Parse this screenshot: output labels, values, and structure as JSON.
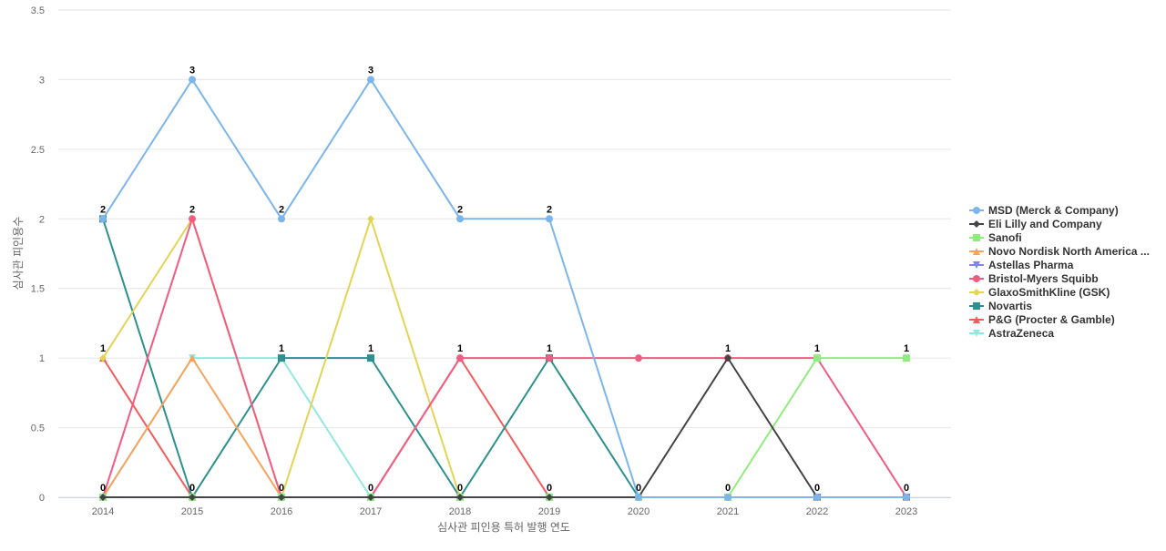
{
  "chart_data": {
    "type": "line",
    "title": "",
    "xlabel": "심사관 피인용 특허 발행 연도",
    "ylabel": "심사관 피인용수",
    "x": [
      "2014",
      "2015",
      "2016",
      "2017",
      "2018",
      "2019",
      "2020",
      "2021",
      "2022",
      "2023"
    ],
    "ylim": [
      0,
      3.5
    ],
    "yticks": [
      "0",
      "0.5",
      "1",
      "1.5",
      "2",
      "2.5",
      "3",
      "3.5"
    ],
    "grid": true,
    "legend_position": "right",
    "series": [
      {
        "name": "MSD (Merck & Company)",
        "color": "#7cb5ec",
        "marker": "circle",
        "values": [
          2,
          3,
          2,
          3,
          2,
          2,
          0,
          0,
          0,
          0
        ]
      },
      {
        "name": "Eli Lilly and Company",
        "color": "#434348",
        "marker": "diamond",
        "values": [
          0,
          0,
          0,
          0,
          0,
          0,
          0,
          1,
          0,
          0
        ]
      },
      {
        "name": "Sanofi",
        "color": "#90ed7d",
        "marker": "square",
        "values": [
          0,
          0,
          0,
          0,
          0,
          0,
          0,
          0,
          1,
          1
        ]
      },
      {
        "name": "Novo Nordisk North America ...",
        "color": "#f7a35c",
        "marker": "triangle",
        "values": [
          0,
          1,
          0,
          0,
          0,
          0,
          0,
          0,
          0,
          0
        ]
      },
      {
        "name": "Astellas Pharma",
        "color": "#8085e9",
        "marker": "triangle-down",
        "values": [
          0,
          0,
          0,
          0,
          0,
          0,
          0,
          0,
          0,
          0
        ]
      },
      {
        "name": "Bristol-Myers Squibb",
        "color": "#f15c80",
        "marker": "circle",
        "values": [
          0,
          2,
          0,
          0,
          1,
          1,
          1,
          1,
          1,
          0
        ]
      },
      {
        "name": "GlaxoSmithKline (GSK)",
        "color": "#e4d354",
        "marker": "diamond",
        "values": [
          1,
          2,
          0,
          2,
          0,
          0,
          0,
          0,
          0,
          0
        ]
      },
      {
        "name": "Novartis",
        "color": "#2b908f",
        "marker": "square",
        "values": [
          2,
          0,
          1,
          1,
          0,
          1,
          0,
          0,
          0,
          0
        ]
      },
      {
        "name": "P&G (Procter & Gamble)",
        "color": "#f45b5b",
        "marker": "triangle",
        "values": [
          1,
          0,
          0,
          0,
          1,
          0,
          0,
          0,
          0,
          0
        ]
      },
      {
        "name": "AstraZeneca",
        "color": "#91e8e1",
        "marker": "triangle-down",
        "values": [
          0,
          1,
          1,
          0,
          0,
          0,
          0,
          0,
          0,
          0
        ]
      }
    ],
    "data_labels": [
      "2",
      "3",
      "2",
      "3",
      "2",
      "2",
      "0",
      "1",
      "1",
      "1"
    ],
    "data_labels_low": [
      "1",
      "2",
      "1",
      "1",
      "1",
      "1",
      "",
      "",
      "",
      ""
    ],
    "data_labels_zero": [
      "0",
      "0",
      "0",
      "0",
      "0",
      "0",
      "",
      "0",
      "0",
      "0"
    ]
  }
}
